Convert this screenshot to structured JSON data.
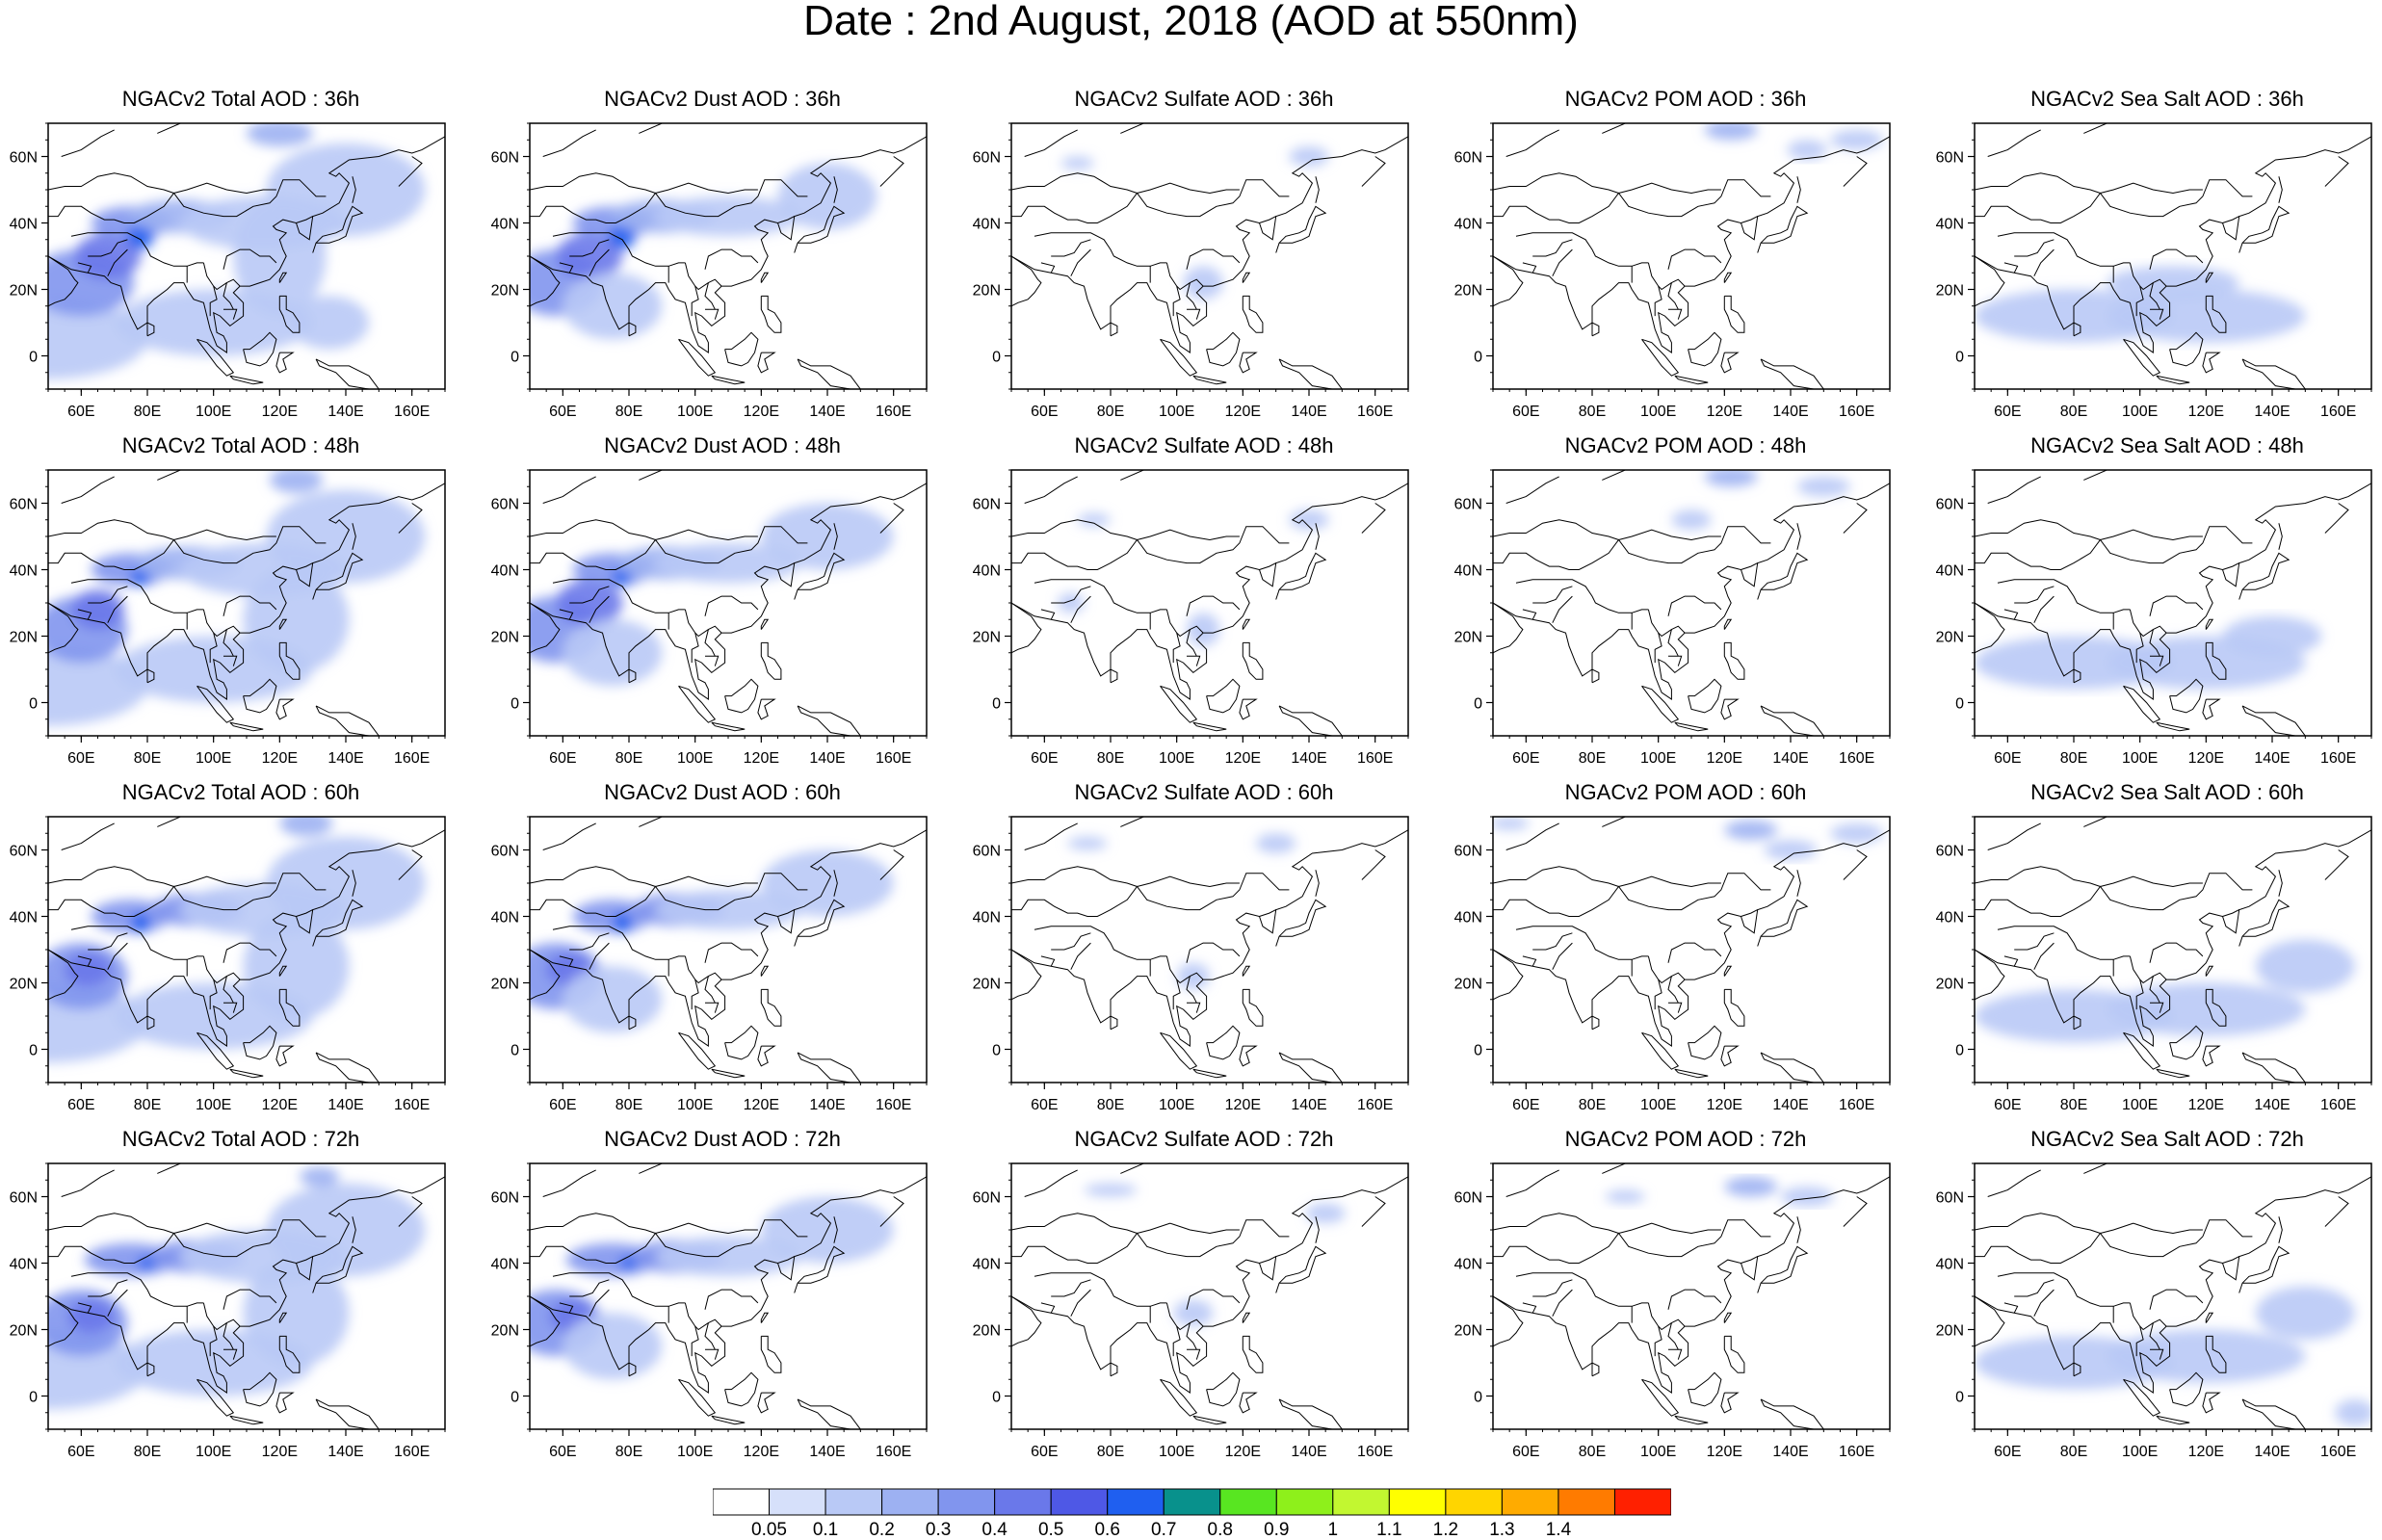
{
  "title": "Date : 2nd August, 2018 (AOD at 550nm)",
  "axis_labels": {
    "lon": [
      "60E",
      "80E",
      "100E",
      "120E",
      "140E",
      "160E"
    ],
    "lat": [
      "60N",
      "40N",
      "20N",
      "0"
    ]
  },
  "panels": [
    [
      {
        "title": "NGACv2 Total AOD : 36h",
        "species": "total"
      },
      {
        "title": "NGACv2 Dust AOD : 36h",
        "species": "dust"
      },
      {
        "title": "NGACv2 Sulfate AOD : 36h",
        "species": "sulfate"
      },
      {
        "title": "NGACv2 POM AOD : 36h",
        "species": "pom"
      },
      {
        "title": "NGACv2 Sea Salt AOD : 36h",
        "species": "seasalt"
      }
    ],
    [
      {
        "title": "NGACv2 Total AOD : 48h",
        "species": "total"
      },
      {
        "title": "NGACv2 Dust AOD : 48h",
        "species": "dust"
      },
      {
        "title": "NGACv2 Sulfate AOD : 48h",
        "species": "sulfate"
      },
      {
        "title": "NGACv2 POM AOD : 48h",
        "species": "pom"
      },
      {
        "title": "NGACv2 Sea Salt AOD : 48h",
        "species": "seasalt"
      }
    ],
    [
      {
        "title": "NGACv2 Total AOD : 60h",
        "species": "total"
      },
      {
        "title": "NGACv2 Dust AOD : 60h",
        "species": "dust"
      },
      {
        "title": "NGACv2 Sulfate AOD : 60h",
        "species": "sulfate"
      },
      {
        "title": "NGACv2 POM AOD : 60h",
        "species": "pom"
      },
      {
        "title": "NGACv2 Sea Salt AOD : 60h",
        "species": "seasalt"
      }
    ],
    [
      {
        "title": "NGACv2 Total AOD : 72h",
        "species": "total"
      },
      {
        "title": "NGACv2 Dust AOD : 72h",
        "species": "dust"
      },
      {
        "title": "NGACv2 Sulfate AOD : 72h",
        "species": "sulfate"
      },
      {
        "title": "NGACv2 POM AOD : 72h",
        "species": "pom"
      },
      {
        "title": "NGACv2 Sea Salt  AOD : 72h",
        "species": "seasalt"
      }
    ]
  ],
  "colorbar": {
    "labels": [
      "0.05",
      "0.1",
      "0.2",
      "0.3",
      "0.4",
      "0.5",
      "0.6",
      "0.7",
      "0.8",
      "0.9",
      "1",
      "1.1",
      "1.2",
      "1.3",
      "1.4"
    ],
    "colors": [
      "#ffffff",
      "#d6e0fa",
      "#b9c9f6",
      "#9db1f2",
      "#8195ee",
      "#6a78ea",
      "#4e58e6",
      "#1f5ff0",
      "#08918c",
      "#58e621",
      "#8ef01b",
      "#c2f730",
      "#ffff00",
      "#ffd500",
      "#ffab00",
      "#ff7b00",
      "#ff2000"
    ]
  }
}
